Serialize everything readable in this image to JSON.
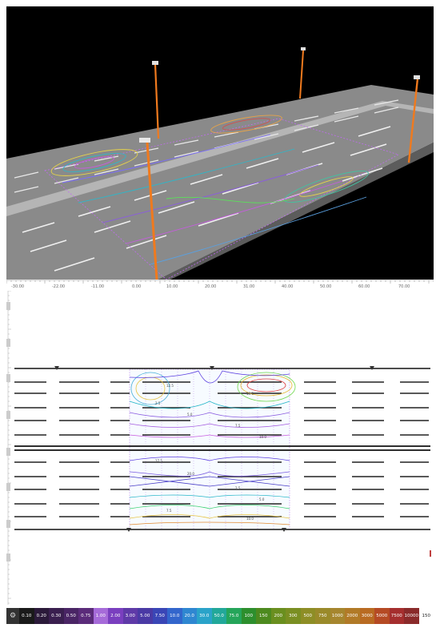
{
  "viewer": {
    "title": "",
    "top_ruler_ticks": [
      "-30.00",
      "-22.00",
      "-11.00",
      "0.00",
      "10.00",
      "20.00",
      "31.00",
      "40.00",
      "50.00",
      "60.00",
      "70.00"
    ],
    "contour_labels_plan": [
      "2.5",
      "5.0",
      "7.5",
      "10.0",
      "12.5",
      "15.0",
      "17.5",
      "20.0",
      "2.5",
      "5.0",
      "7.5",
      "10.0"
    ]
  },
  "legend": {
    "gear_icon": "gear-icon",
    "items": [
      {
        "label": "0.10",
        "color": "#1a1a1a"
      },
      {
        "label": "0.20",
        "color": "#2b1a3a"
      },
      {
        "label": "0.30",
        "color": "#3a1f4f"
      },
      {
        "label": "0.50",
        "color": "#4a2565"
      },
      {
        "label": "0.75",
        "color": "#5b2b7a"
      },
      {
        "label": "1.00",
        "color": "#a66bd9"
      },
      {
        "label": "2.00",
        "color": "#7a3fbf"
      },
      {
        "label": "3.00",
        "color": "#5f3aa8"
      },
      {
        "label": "5.00",
        "color": "#4a3aa5"
      },
      {
        "label": "7.50",
        "color": "#3a46b6"
      },
      {
        "label": "10.0",
        "color": "#3366cc"
      },
      {
        "label": "20.0",
        "color": "#2f87d1"
      },
      {
        "label": "30.0",
        "color": "#2aa3c9"
      },
      {
        "label": "50.0",
        "color": "#22a89a"
      },
      {
        "label": "75.0",
        "color": "#25a55a"
      },
      {
        "label": "100",
        "color": "#2d8f2d"
      },
      {
        "label": "150",
        "color": "#4d8a1f"
      },
      {
        "label": "200",
        "color": "#6a8f1f"
      },
      {
        "label": "300",
        "color": "#7a8f22"
      },
      {
        "label": "500",
        "color": "#8e8e26"
      },
      {
        "label": "750",
        "color": "#9a8a2a"
      },
      {
        "label": "1000",
        "color": "#a6862e"
      },
      {
        "label": "2000",
        "color": "#b17a27"
      },
      {
        "label": "3000",
        "color": "#b96b22"
      },
      {
        "label": "5000",
        "color": "#b54a24"
      },
      {
        "label": "7500",
        "color": "#a52e2e"
      },
      {
        "label": "10000",
        "color": "#8a2a2a"
      },
      {
        "label": "150",
        "color": "#ffffff",
        "dark_text": true
      }
    ]
  }
}
